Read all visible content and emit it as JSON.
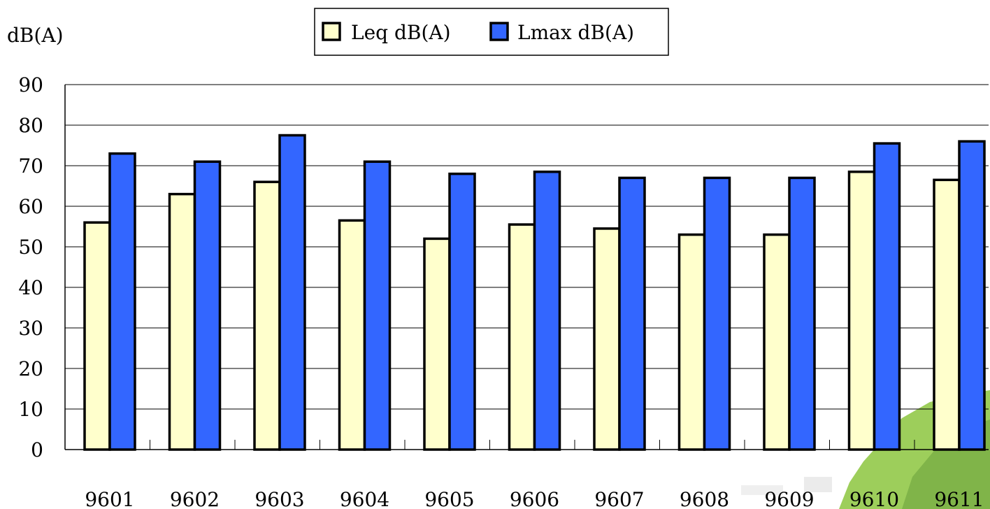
{
  "chart_data": {
    "type": "bar",
    "title": "",
    "xlabel": "",
    "ylabel": "dB(A)",
    "ylim": [
      0,
      90
    ],
    "yticks": [
      0,
      10,
      20,
      30,
      40,
      50,
      60,
      70,
      80,
      90
    ],
    "grid": true,
    "legend_position": "top-center",
    "categories": [
      "9601",
      "9602",
      "9603",
      "9604",
      "9605",
      "9606",
      "9607",
      "9608",
      "9609",
      "9610",
      "9611"
    ],
    "series": [
      {
        "name": "Leq dB(A)",
        "color": "#ffffcc",
        "values": [
          56,
          63,
          66,
          56.5,
          52,
          55.5,
          54.5,
          53,
          53,
          68.5,
          66.5
        ]
      },
      {
        "name": "Lmax dB(A)",
        "color": "#3366ff",
        "values": [
          73,
          71,
          77.5,
          71,
          68,
          68.5,
          67,
          67,
          67,
          75.5,
          76
        ]
      }
    ]
  }
}
